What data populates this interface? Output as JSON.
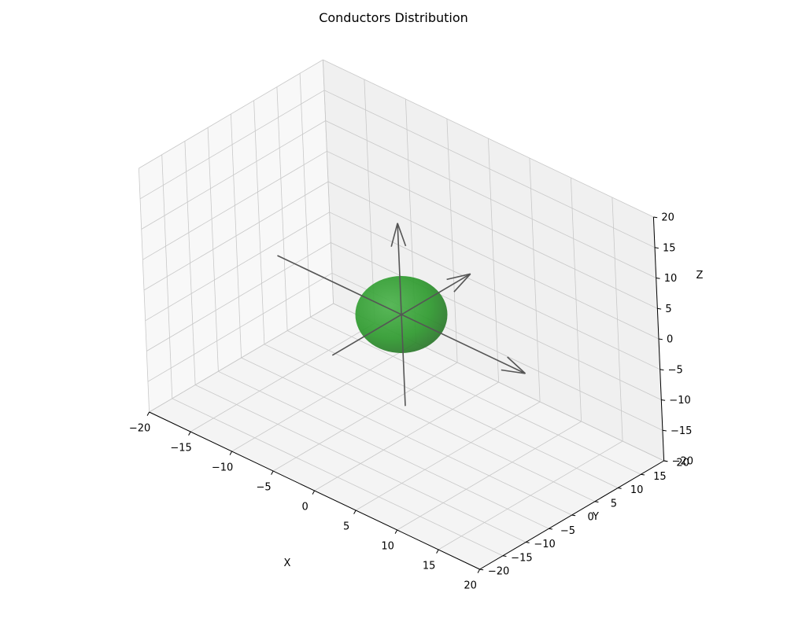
{
  "chart_data": {
    "type": "scatter",
    "title": "Conductors Distribution",
    "xlabel": "X",
    "ylabel": "Y",
    "zlabel": "Z",
    "xlim": [
      -20,
      20
    ],
    "ylim": [
      -20,
      20
    ],
    "zlim": [
      -20,
      20
    ],
    "xticks": [
      "−20",
      "−15",
      "−10",
      "−5",
      "0",
      "5",
      "10",
      "15",
      "20"
    ],
    "yticks": [
      "−20",
      "−15",
      "−10",
      "−5",
      "0",
      "5",
      "10",
      "15",
      "20"
    ],
    "zticks": [
      "−20",
      "−15",
      "−10",
      "−5",
      "0",
      "5",
      "10",
      "15",
      "20"
    ],
    "grid": true,
    "objects": [
      {
        "kind": "sphere",
        "center": [
          0,
          0,
          0
        ],
        "radius": 5,
        "color": "#2e9a2e"
      }
    ],
    "arrows": [
      {
        "axis": "x",
        "from": [
          -15,
          0,
          0
        ],
        "to": [
          15,
          0,
          0
        ]
      },
      {
        "axis": "y",
        "from": [
          0,
          -15,
          0
        ],
        "to": [
          0,
          15,
          0
        ]
      },
      {
        "axis": "z",
        "from": [
          0,
          0,
          -15
        ],
        "to": [
          0,
          0,
          15
        ]
      }
    ],
    "colors": {
      "pane_left": "#f8f8f8",
      "pane_back": "#f0f0f0",
      "pane_floor": "#f4f4f4",
      "grid": "#c8c8c8",
      "arrow": "#555555"
    }
  }
}
